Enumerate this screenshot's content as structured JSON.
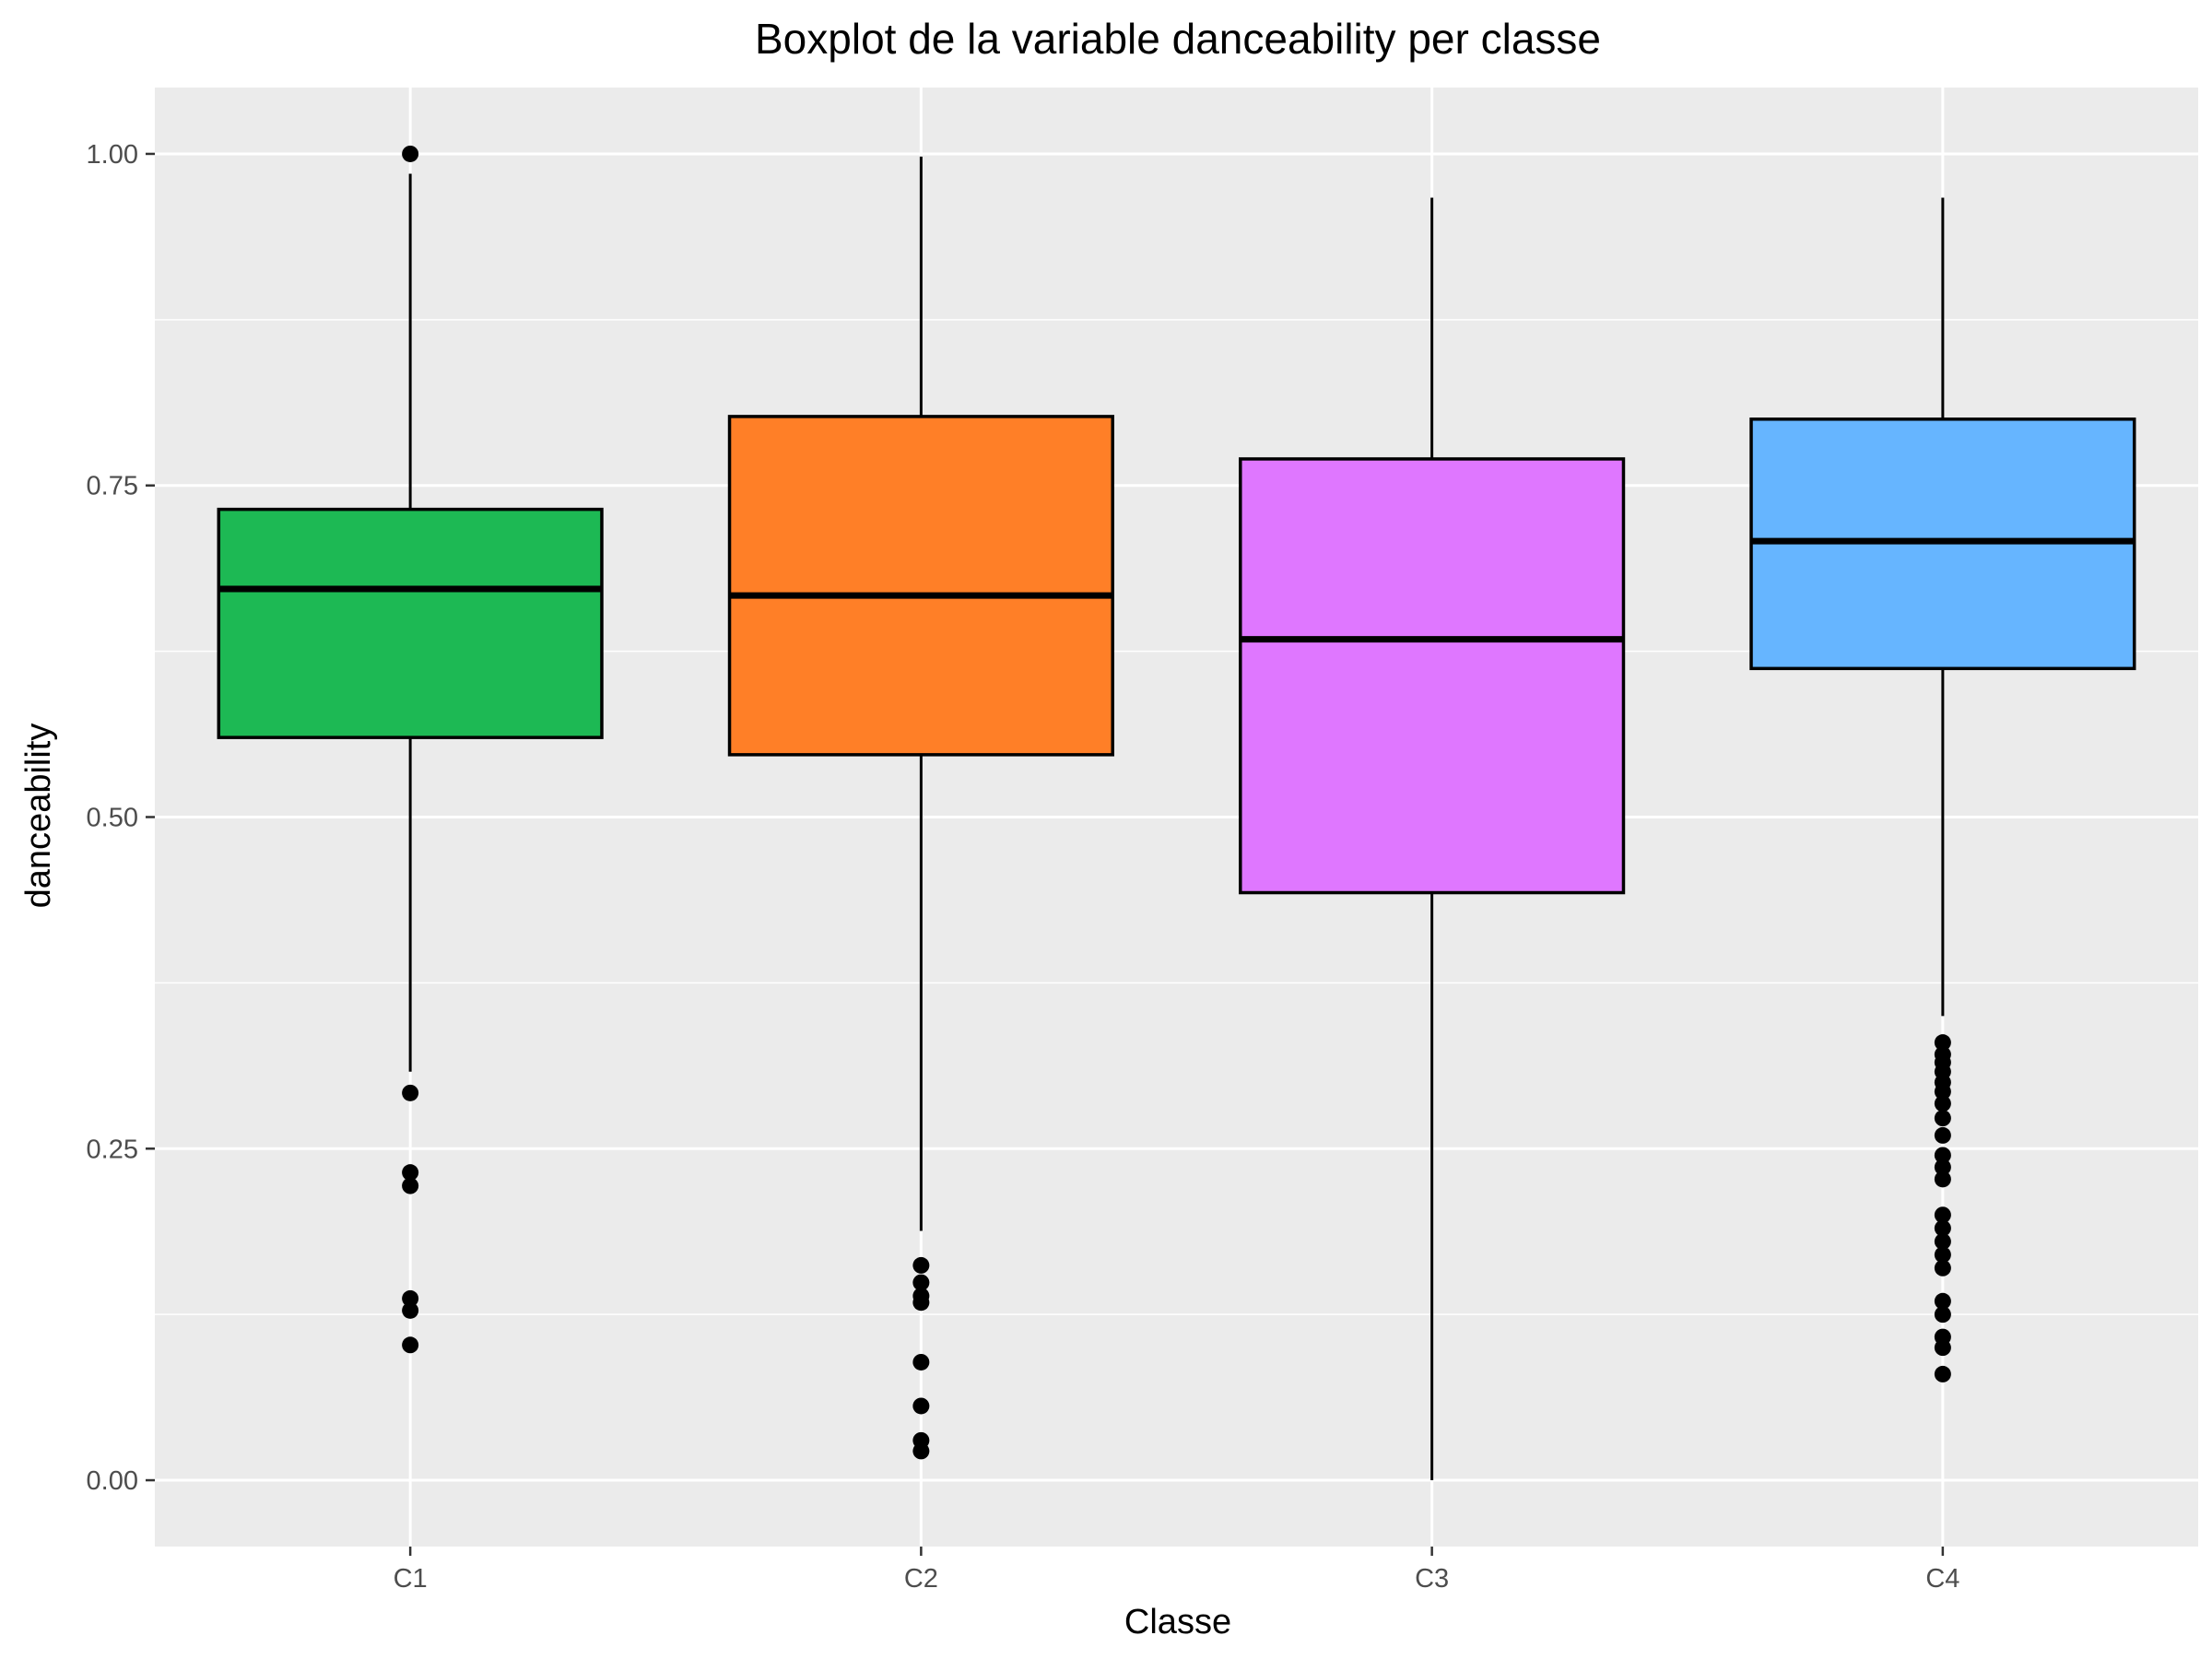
{
  "chart_data": {
    "type": "boxplot",
    "title": "Boxplot de la variable danceability per classe",
    "xlabel": "Classe",
    "ylabel": "danceability",
    "ylim": [
      -0.05,
      1.05
    ],
    "yticks": [
      "0.00",
      "0.25",
      "0.50",
      "0.75",
      "1.00"
    ],
    "categories": [
      "C1",
      "C2",
      "C3",
      "C4"
    ],
    "colors": {
      "panel": "#ebebeb",
      "grid": "#ffffff",
      "box_outline": "#000000",
      "median": "#000000",
      "whisker": "#000000",
      "outlier": "#000000"
    },
    "series": [
      {
        "category": "C1",
        "fill": "#1db954",
        "whisker_low": 0.308,
        "q1": 0.56,
        "median": 0.672,
        "q3": 0.732,
        "whisker_high": 0.985,
        "outliers": [
          1.0,
          0.292,
          0.232,
          0.222,
          0.137,
          0.128,
          0.102
        ]
      },
      {
        "category": "C2",
        "fill": "#ff7f27",
        "whisker_low": 0.188,
        "q1": 0.547,
        "median": 0.667,
        "q3": 0.802,
        "whisker_high": 0.998,
        "outliers": [
          0.162,
          0.149,
          0.139,
          0.134,
          0.089,
          0.056,
          0.03,
          0.022
        ]
      },
      {
        "category": "C3",
        "fill": "#df77ff",
        "whisker_low": 0.0,
        "q1": 0.443,
        "median": 0.634,
        "q3": 0.77,
        "whisker_high": 0.967,
        "outliers": []
      },
      {
        "category": "C4",
        "fill": "#66b5ff",
        "whisker_low": 0.35,
        "q1": 0.612,
        "median": 0.708,
        "q3": 0.8,
        "whisker_high": 0.967,
        "outliers": [
          0.33,
          0.321,
          0.315,
          0.308,
          0.3,
          0.293,
          0.284,
          0.273,
          0.26,
          0.245,
          0.236,
          0.227,
          0.2,
          0.19,
          0.18,
          0.17,
          0.16,
          0.135,
          0.125,
          0.108,
          0.1,
          0.08
        ]
      }
    ]
  }
}
